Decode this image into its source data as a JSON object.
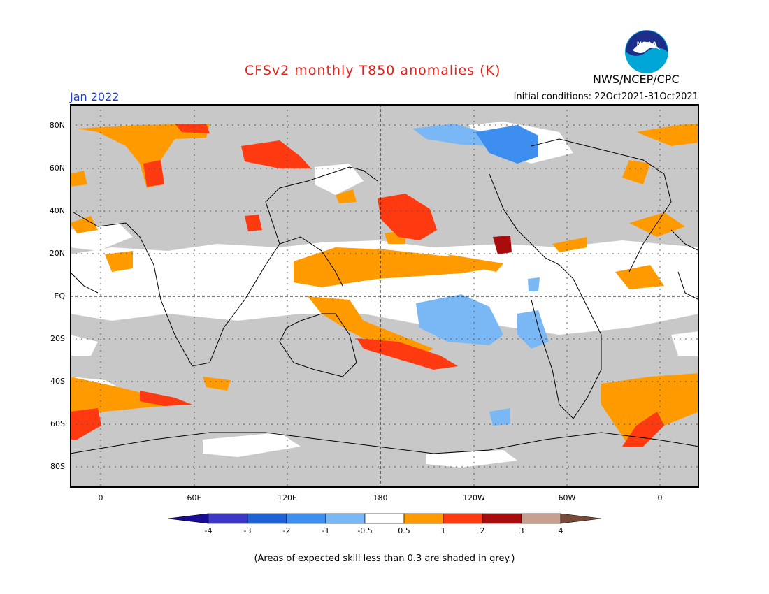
{
  "title": "CFSv2 monthly T850 anomalies (K)",
  "month": "Jan 2022",
  "initial_conditions": "Initial conditions: 22Oct2021-31Oct2021",
  "organization": "NWS/NCEP/CPC",
  "logo_text": "NOAA",
  "footnote": "(Areas of expected skill less than 0.3 are shaded in grey.)",
  "lat_labels": [
    "80N",
    "60N",
    "40N",
    "20N",
    "EQ",
    "20S",
    "40S",
    "60S",
    "80S"
  ],
  "lon_labels": [
    "0",
    "60E",
    "120E",
    "180",
    "120W",
    "60W",
    "0"
  ],
  "colorbar": {
    "labels": [
      "-4",
      "-3",
      "-2",
      "-1",
      "-0.5",
      "0.5",
      "1",
      "2",
      "3",
      "4"
    ],
    "colors": [
      "#1a0c96",
      "#3b38c8",
      "#1e62d6",
      "#3e8ef0",
      "#7ab8f5",
      "#ffffff",
      "#ff9a00",
      "#ff3a10",
      "#a80c0c",
      "#c8a090",
      "#7a4a38"
    ]
  },
  "colors": {
    "skill_grey": "#c8c8c8",
    "title_red": "#e8201a",
    "month_blue": "#1a3cd2"
  }
}
